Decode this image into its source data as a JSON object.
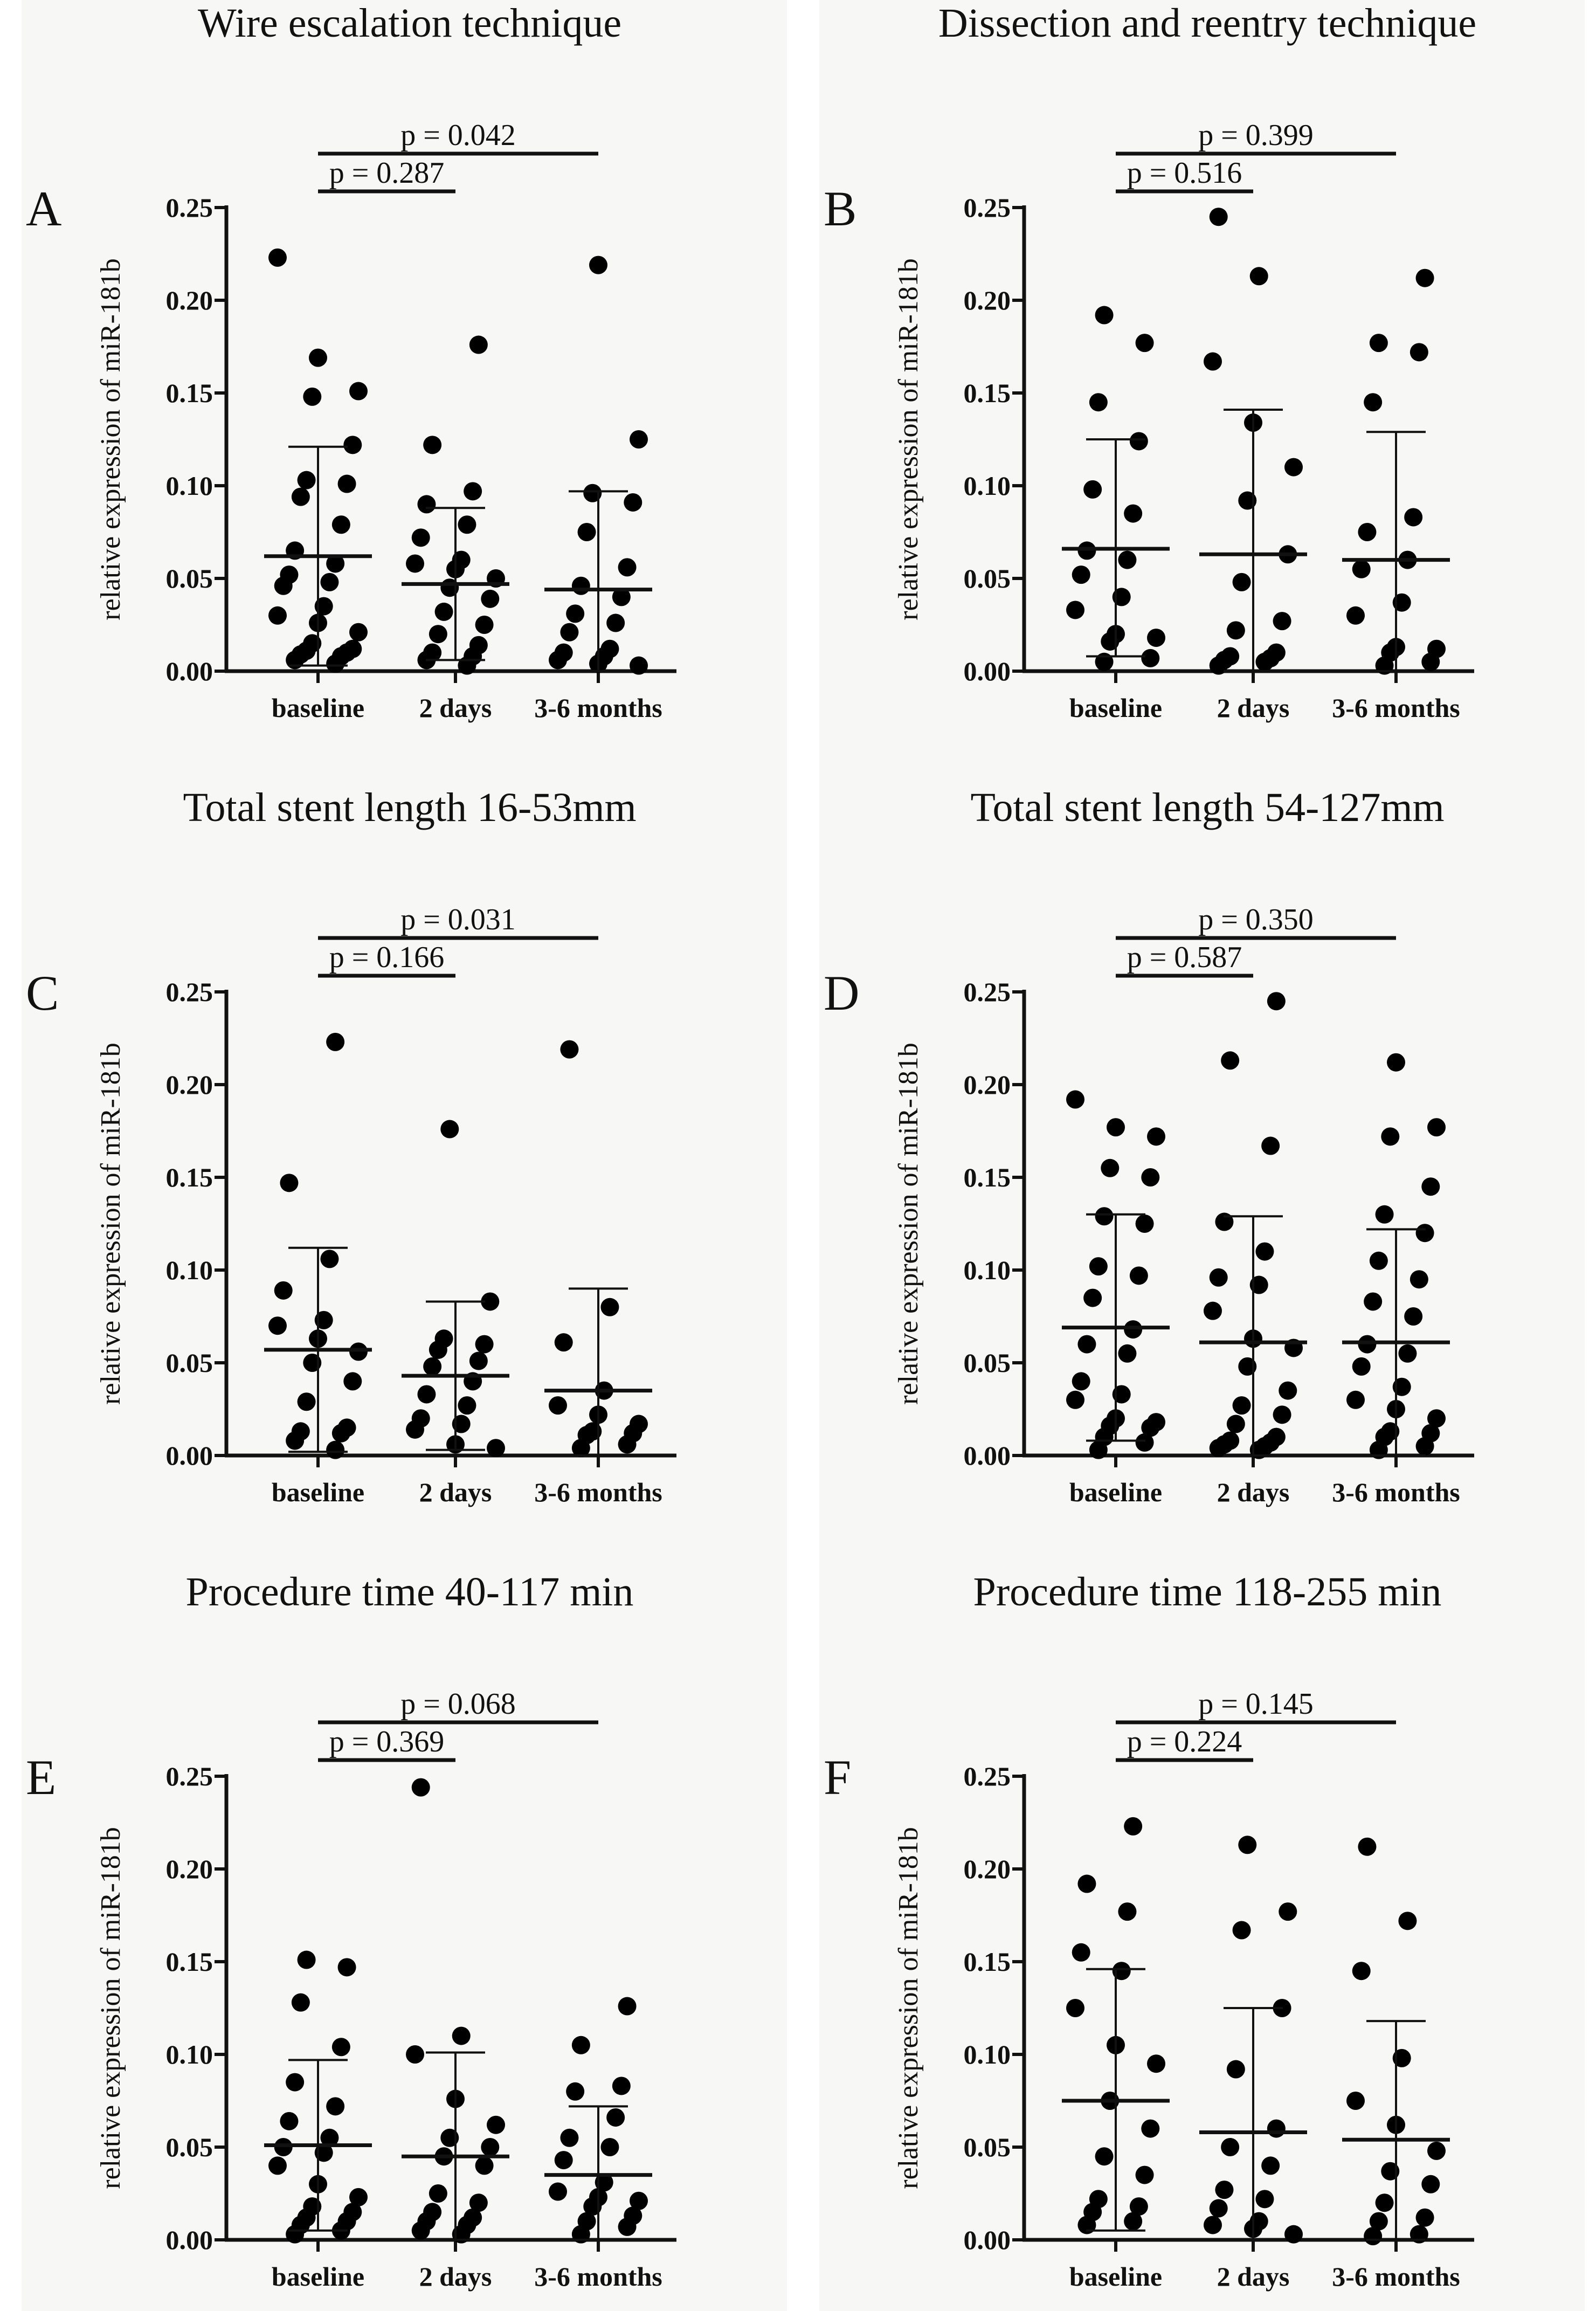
{
  "chart_data": [
    {
      "type": "scatter",
      "panel": "A",
      "title": "Wire escalation technique",
      "ylabel": "relative expression of miR-181b",
      "ylim": [
        0,
        0.25
      ],
      "yticks": [
        "0.00",
        "0.05",
        "0.10",
        "0.15",
        "0.20",
        "0.25"
      ],
      "categories": [
        "baseline",
        "2 days",
        "3-6 months"
      ],
      "means": [
        0.062,
        0.047,
        0.044
      ],
      "sd_upper": [
        0.121,
        0.088,
        0.097
      ],
      "sd_lower": [
        0.003,
        0.006,
        0.0
      ],
      "points": [
        [
          0.223,
          0.169,
          0.151,
          0.148,
          0.122,
          0.103,
          0.101,
          0.094,
          0.079,
          0.065,
          0.058,
          0.052,
          0.048,
          0.046,
          0.035,
          0.03,
          0.026,
          0.021,
          0.015,
          0.012,
          0.011,
          0.01,
          0.009,
          0.008,
          0.006,
          0.004
        ],
        [
          0.176,
          0.122,
          0.097,
          0.09,
          0.079,
          0.072,
          0.06,
          0.058,
          0.055,
          0.05,
          0.045,
          0.039,
          0.032,
          0.025,
          0.02,
          0.014,
          0.01,
          0.008,
          0.006,
          0.003
        ],
        [
          0.219,
          0.125,
          0.096,
          0.091,
          0.075,
          0.056,
          0.046,
          0.04,
          0.031,
          0.026,
          0.021,
          0.012,
          0.01,
          0.008,
          0.006,
          0.004,
          0.003
        ]
      ],
      "comparisons": [
        {
          "from": "baseline",
          "to": "2 days",
          "label": "p = 0.287"
        },
        {
          "from": "baseline",
          "to": "3-6 months",
          "label": "p = 0.042"
        }
      ]
    },
    {
      "type": "scatter",
      "panel": "B",
      "title": "Dissection and reentry technique",
      "ylabel": "relative expression of miR-181b",
      "ylim": [
        0,
        0.25
      ],
      "yticks": [
        "0.00",
        "0.05",
        "0.10",
        "0.15",
        "0.20",
        "0.25"
      ],
      "categories": [
        "baseline",
        "2 days",
        "3-6 months"
      ],
      "means": [
        0.066,
        0.063,
        0.06
      ],
      "sd_upper": [
        0.125,
        0.141,
        0.129
      ],
      "sd_lower": [
        0.008,
        0.0,
        0.0
      ],
      "points": [
        [
          0.192,
          0.177,
          0.145,
          0.124,
          0.098,
          0.085,
          0.065,
          0.06,
          0.052,
          0.04,
          0.033,
          0.02,
          0.018,
          0.016,
          0.007,
          0.005
        ],
        [
          0.245,
          0.213,
          0.167,
          0.134,
          0.11,
          0.092,
          0.063,
          0.048,
          0.027,
          0.022,
          0.01,
          0.008,
          0.007,
          0.006,
          0.005,
          0.003
        ],
        [
          0.212,
          0.177,
          0.172,
          0.145,
          0.083,
          0.075,
          0.06,
          0.055,
          0.037,
          0.03,
          0.013,
          0.012,
          0.01,
          0.005,
          0.003
        ]
      ],
      "comparisons": [
        {
          "from": "baseline",
          "to": "2 days",
          "label": "p = 0.516"
        },
        {
          "from": "baseline",
          "to": "3-6 months",
          "label": "p = 0.399"
        }
      ]
    },
    {
      "type": "scatter",
      "panel": "C",
      "title": "Total stent length  16-53mm",
      "ylabel": "relative expression of miR-181b",
      "ylim": [
        0,
        0.25
      ],
      "yticks": [
        "0.00",
        "0.05",
        "0.10",
        "0.15",
        "0.20",
        "0.25"
      ],
      "categories": [
        "baseline",
        "2 days",
        "3-6 months"
      ],
      "means": [
        0.057,
        0.043,
        0.035
      ],
      "sd_upper": [
        0.112,
        0.083,
        0.09
      ],
      "sd_lower": [
        0.002,
        0.003,
        0.0
      ],
      "points": [
        [
          0.223,
          0.147,
          0.106,
          0.089,
          0.073,
          0.07,
          0.063,
          0.056,
          0.05,
          0.04,
          0.029,
          0.015,
          0.013,
          0.012,
          0.008,
          0.003
        ],
        [
          0.176,
          0.083,
          0.063,
          0.06,
          0.057,
          0.051,
          0.048,
          0.04,
          0.033,
          0.027,
          0.02,
          0.017,
          0.014,
          0.006,
          0.004
        ],
        [
          0.219,
          0.08,
          0.061,
          0.035,
          0.027,
          0.022,
          0.017,
          0.013,
          0.012,
          0.011,
          0.006,
          0.004
        ]
      ],
      "comparisons": [
        {
          "from": "baseline",
          "to": "2 days",
          "label": "p = 0.166"
        },
        {
          "from": "baseline",
          "to": "3-6 months",
          "label": "p = 0.031"
        }
      ]
    },
    {
      "type": "scatter",
      "panel": "D",
      "title": "Total stent length  54-127mm",
      "ylabel": "relative expression of miR-181b",
      "ylim": [
        0,
        0.25
      ],
      "yticks": [
        "0.00",
        "0.05",
        "0.10",
        "0.15",
        "0.20",
        "0.25"
      ],
      "categories": [
        "baseline",
        "2 days",
        "3-6 months"
      ],
      "means": [
        0.069,
        0.061,
        0.061
      ],
      "sd_upper": [
        0.13,
        0.129,
        0.122
      ],
      "sd_lower": [
        0.008,
        0.0,
        0.0
      ],
      "points": [
        [
          0.192,
          0.177,
          0.172,
          0.155,
          0.15,
          0.129,
          0.125,
          0.102,
          0.097,
          0.085,
          0.068,
          0.06,
          0.055,
          0.04,
          0.033,
          0.03,
          0.02,
          0.018,
          0.016,
          0.015,
          0.01,
          0.007,
          0.003
        ],
        [
          0.245,
          0.213,
          0.167,
          0.126,
          0.11,
          0.096,
          0.092,
          0.078,
          0.063,
          0.058,
          0.048,
          0.035,
          0.027,
          0.022,
          0.017,
          0.01,
          0.008,
          0.007,
          0.006,
          0.005,
          0.004,
          0.003
        ],
        [
          0.212,
          0.177,
          0.172,
          0.145,
          0.13,
          0.12,
          0.105,
          0.095,
          0.083,
          0.075,
          0.06,
          0.055,
          0.048,
          0.037,
          0.03,
          0.025,
          0.02,
          0.013,
          0.012,
          0.01,
          0.005,
          0.003
        ]
      ],
      "comparisons": [
        {
          "from": "baseline",
          "to": "2 days",
          "label": "p = 0.587"
        },
        {
          "from": "baseline",
          "to": "3-6 months",
          "label": "p = 0.350"
        }
      ]
    },
    {
      "type": "scatter",
      "panel": "E",
      "title": "Procedure time  40-117  min",
      "ylabel": "relative expression of miR-181b",
      "ylim": [
        0,
        0.25
      ],
      "yticks": [
        "0.00",
        "0.05",
        "0.10",
        "0.15",
        "0.20",
        "0.25"
      ],
      "categories": [
        "baseline",
        "2 days",
        "3-6 months"
      ],
      "means": [
        0.051,
        0.045,
        0.035
      ],
      "sd_upper": [
        0.097,
        0.101,
        0.072
      ],
      "sd_lower": [
        0.005,
        0.0,
        0.0
      ],
      "points": [
        [
          0.151,
          0.147,
          0.128,
          0.104,
          0.085,
          0.072,
          0.064,
          0.055,
          0.05,
          0.047,
          0.04,
          0.03,
          0.023,
          0.018,
          0.015,
          0.012,
          0.01,
          0.008,
          0.005,
          0.003
        ],
        [
          0.244,
          0.11,
          0.1,
          0.076,
          0.062,
          0.055,
          0.05,
          0.045,
          0.04,
          0.025,
          0.02,
          0.015,
          0.012,
          0.01,
          0.008,
          0.005,
          0.003
        ],
        [
          0.126,
          0.105,
          0.083,
          0.08,
          0.066,
          0.055,
          0.05,
          0.043,
          0.031,
          0.026,
          0.023,
          0.021,
          0.018,
          0.013,
          0.01,
          0.007,
          0.003
        ]
      ],
      "comparisons": [
        {
          "from": "baseline",
          "to": "2 days",
          "label": "p = 0.369"
        },
        {
          "from": "baseline",
          "to": "3-6 months",
          "label": "p = 0.068"
        }
      ]
    },
    {
      "type": "scatter",
      "panel": "F",
      "title": "Procedure time  118-255  min",
      "ylabel": "relative expression of miR-181b",
      "ylim": [
        0,
        0.25
      ],
      "yticks": [
        "0.00",
        "0.05",
        "0.10",
        "0.15",
        "0.20",
        "0.25"
      ],
      "categories": [
        "baseline",
        "2 days",
        "3-6 months"
      ],
      "means": [
        0.075,
        0.058,
        0.054
      ],
      "sd_upper": [
        0.146,
        0.125,
        0.118
      ],
      "sd_lower": [
        0.005,
        0.0,
        0.0
      ],
      "points": [
        [
          0.223,
          0.192,
          0.177,
          0.155,
          0.145,
          0.125,
          0.105,
          0.095,
          0.075,
          0.06,
          0.045,
          0.035,
          0.022,
          0.018,
          0.015,
          0.01,
          0.008
        ],
        [
          0.213,
          0.177,
          0.167,
          0.125,
          0.092,
          0.06,
          0.05,
          0.04,
          0.027,
          0.022,
          0.017,
          0.01,
          0.008,
          0.006,
          0.003
        ],
        [
          0.212,
          0.172,
          0.145,
          0.098,
          0.075,
          0.062,
          0.048,
          0.037,
          0.03,
          0.02,
          0.012,
          0.01,
          0.003,
          0.002
        ]
      ],
      "comparisons": [
        {
          "from": "baseline",
          "to": "2 days",
          "label": "p = 0.224"
        },
        {
          "from": "baseline",
          "to": "3-6 months",
          "label": "p = 0.145"
        }
      ]
    }
  ]
}
